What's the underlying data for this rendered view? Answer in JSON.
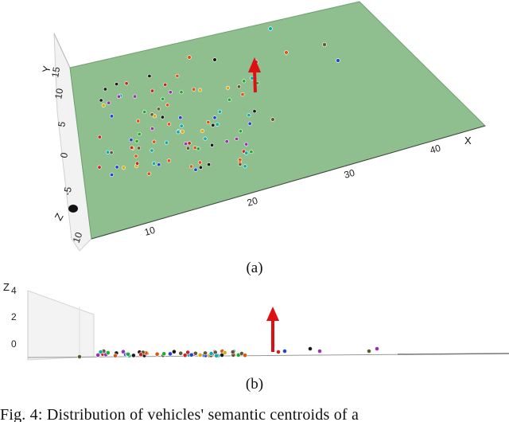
{
  "figure": {
    "subfigure_a": {
      "caption": "(a)",
      "axes": {
        "x_label": "X",
        "y_label": "Y",
        "z_label": "Z",
        "x_ticks": [
          "10",
          "20",
          "30",
          "40"
        ],
        "y_ticks": [
          "-5",
          "0",
          "5",
          "10",
          "15"
        ],
        "z_ticks": [
          "10"
        ]
      },
      "colors": {
        "plane": "#8fbf8f",
        "arrow": "#dd1111",
        "frame": "#cccccc"
      }
    },
    "subfigure_b": {
      "caption": "(b)",
      "axes": {
        "z_label": "Z",
        "z_ticks": [
          "4",
          "2",
          "0"
        ]
      },
      "colors": {
        "arrow": "#dd1111",
        "ground": "#999999"
      }
    },
    "caption_text": "Fig. 4: Distribution of vehicles' semantic centroids of a"
  }
}
